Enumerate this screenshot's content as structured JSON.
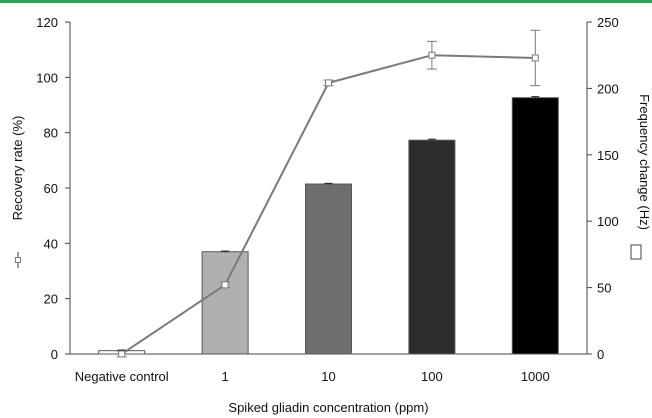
{
  "chart_data": {
    "type": "bar",
    "categories": [
      "Negative control",
      "1",
      "10",
      "100",
      "1000"
    ],
    "xlabel": "Spiked gliadin concentration (ppm)",
    "series": [
      {
        "name": "Frequency change (Hz)",
        "type": "bar",
        "axis": "right",
        "values": [
          2.5,
          77,
          128,
          161,
          193
        ],
        "errors": [
          0.5,
          0.5,
          0.5,
          0.8,
          0.8
        ],
        "colors": [
          "#ffffff",
          "#b0b0b0",
          "#6e6e6e",
          "#2c2c2c",
          "#000000"
        ]
      },
      {
        "name": "Recovery rate (%)",
        "type": "line",
        "axis": "left",
        "values": [
          0,
          25,
          98,
          108,
          107
        ],
        "errors": [
          1,
          1,
          1,
          5,
          10
        ],
        "color": "#7a7a7a"
      }
    ],
    "y_left": {
      "label": "Recovery rate (%)",
      "lim": [
        0,
        120
      ],
      "ticks": [
        0,
        20,
        40,
        60,
        80,
        100,
        120
      ]
    },
    "y_right": {
      "label": "Frequency change (Hz)",
      "lim": [
        0,
        250
      ],
      "ticks": [
        0,
        50,
        100,
        150,
        200,
        250
      ]
    },
    "grid": false
  }
}
